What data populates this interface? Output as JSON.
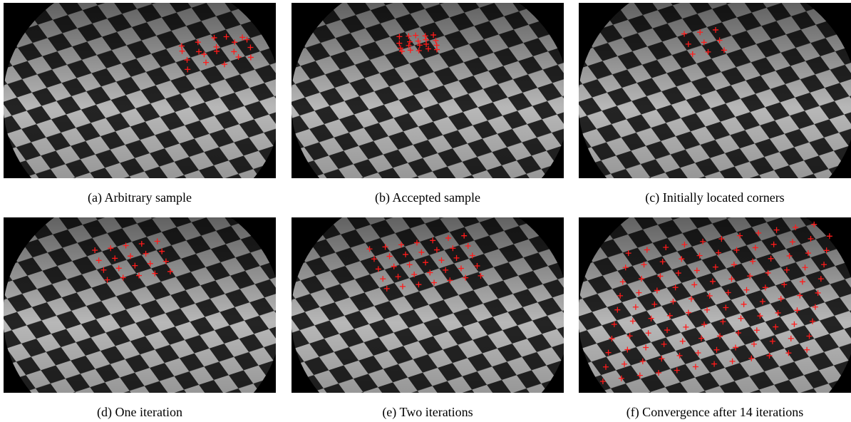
{
  "panels": [
    {
      "caption": "(a) Arbitrary sample"
    },
    {
      "caption": "(b) Accepted sample"
    },
    {
      "caption": "(c) Initially located corners"
    },
    {
      "caption": "(d) One iteration"
    },
    {
      "caption": "(e) Two iterations"
    },
    {
      "caption": "(f) Convergence after 14 iterations"
    }
  ]
}
